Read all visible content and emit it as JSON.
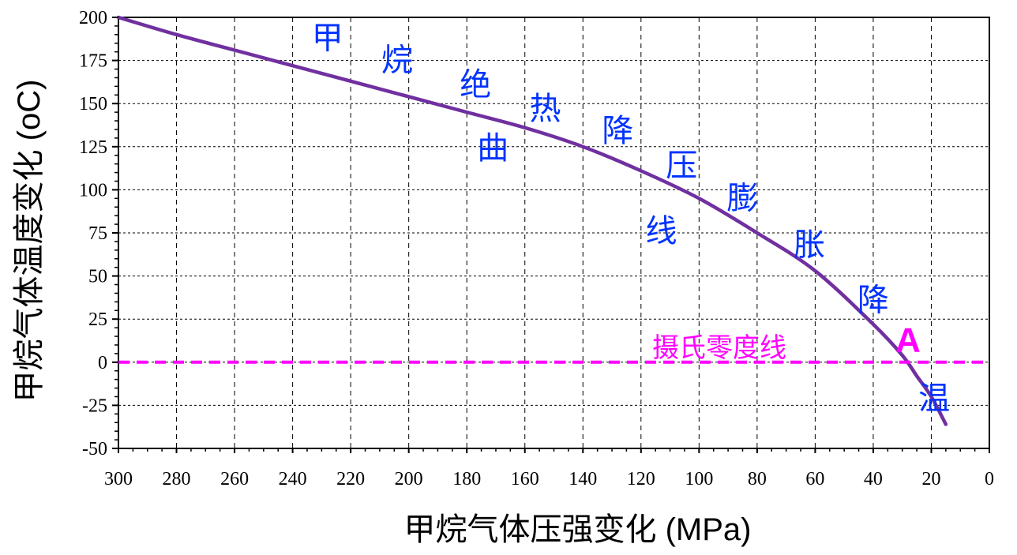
{
  "chart_data": {
    "type": "line",
    "xlabel": "甲烷气体压强变化 (MPa)",
    "ylabel": "甲烷气体温度变化 (oC)",
    "xlim": [
      300,
      0
    ],
    "ylim": [
      -50,
      200
    ],
    "x_ticks": [
      "300",
      "280",
      "260",
      "240",
      "220",
      "200",
      "180",
      "160",
      "140",
      "120",
      "100",
      "80",
      "60",
      "40",
      "20",
      "0"
    ],
    "y_ticks": [
      "200",
      "175",
      "150",
      "125",
      "100",
      "75",
      "50",
      "25",
      "0",
      "-25",
      "-50"
    ],
    "grid": true,
    "series": [
      {
        "color": "#7030a0",
        "x": [
          300,
          280,
          260,
          240,
          220,
          200,
          180,
          160,
          140,
          120,
          100,
          80,
          60,
          40,
          30,
          25,
          20,
          15
        ],
        "y": [
          200,
          190,
          181,
          172,
          163,
          154,
          145,
          136,
          125,
          111,
          95,
          75,
          53,
          22,
          4,
          -8,
          -20,
          -36
        ]
      },
      {
        "name": "摄氏零度线",
        "color": "#ff00ff",
        "style": "dashed",
        "x": [
          300,
          0
        ],
        "y": [
          0,
          0
        ]
      }
    ],
    "annotations": [
      {
        "text": "甲",
        "x": 228,
        "y": 182,
        "color": "#0033ff"
      },
      {
        "text": "烷",
        "x": 204,
        "y": 169,
        "color": "#0033ff"
      },
      {
        "text": "绝",
        "x": 177,
        "y": 155,
        "color": "#0033ff"
      },
      {
        "text": "热",
        "x": 153,
        "y": 141,
        "color": "#0033ff"
      },
      {
        "text": "降",
        "x": 128,
        "y": 128,
        "color": "#0033ff"
      },
      {
        "text": "压",
        "x": 106,
        "y": 108,
        "color": "#0033ff"
      },
      {
        "text": "膨",
        "x": 85,
        "y": 89,
        "color": "#0033ff"
      },
      {
        "text": "胀",
        "x": 62,
        "y": 62,
        "color": "#0033ff"
      },
      {
        "text": "降",
        "x": 40,
        "y": 30,
        "color": "#0033ff"
      },
      {
        "text": "温",
        "x": 19,
        "y": -27,
        "color": "#0033ff"
      },
      {
        "text": "曲",
        "x": 171,
        "y": 118,
        "color": "#0033ff"
      },
      {
        "text": "线",
        "x": 113,
        "y": 70,
        "color": "#0033ff"
      },
      {
        "text": "摄氏零度线",
        "x": 93,
        "y": 3,
        "color": "#ff00ff",
        "size": "small"
      },
      {
        "text": "A",
        "x": 28,
        "y": 6,
        "color": "#ff00ff",
        "size": "point"
      }
    ]
  },
  "colors": {
    "curve": "#7030a0",
    "zero_line": "#ff00ff",
    "annotation": "#0033ff",
    "grid": "#000000"
  }
}
